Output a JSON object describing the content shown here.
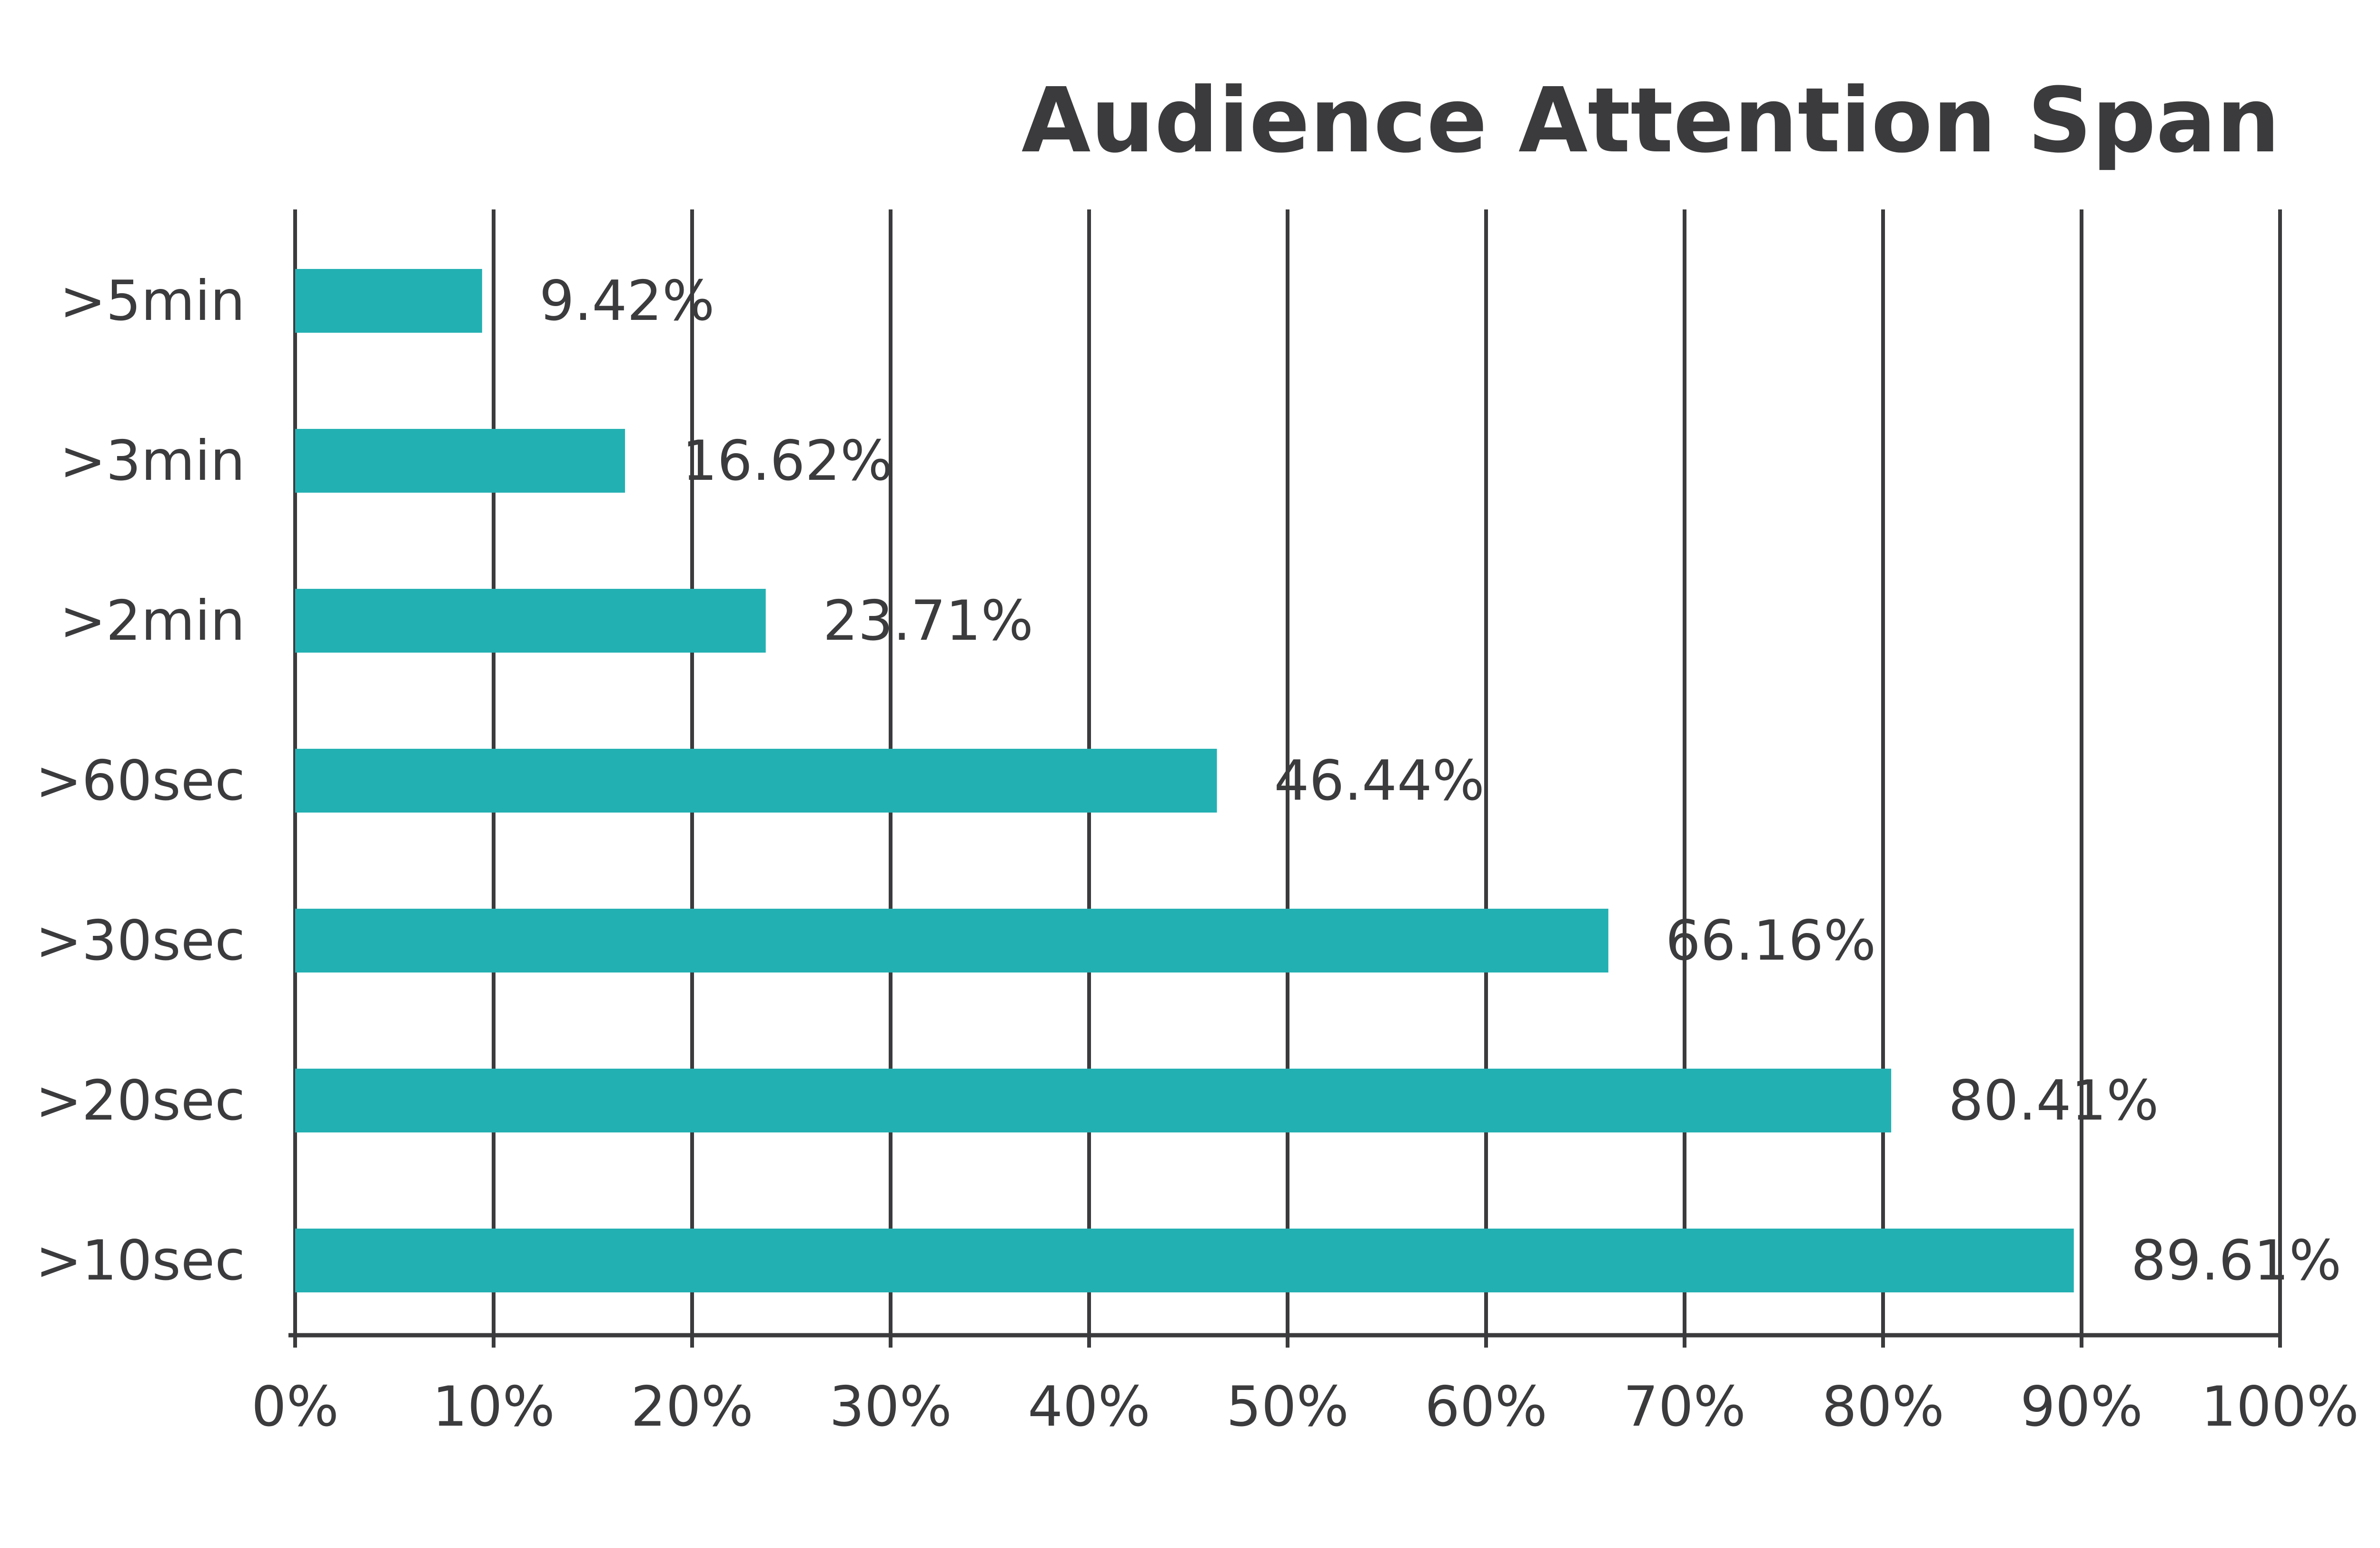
{
  "chart_data": {
    "type": "bar",
    "orientation": "horizontal",
    "title": "Audience Attention Span",
    "xlabel": "",
    "ylabel": "",
    "categories": [
      ">5min",
      ">3min",
      ">2min",
      ">60sec",
      ">30sec",
      ">20sec",
      ">10sec"
    ],
    "values": [
      9.42,
      16.62,
      23.71,
      46.44,
      66.16,
      80.41,
      89.61
    ],
    "value_labels": [
      "9.42%",
      "16.62%",
      "23.71%",
      "46.44%",
      "66.16%",
      "80.41%",
      "89.61%"
    ],
    "xlim": [
      0,
      100
    ],
    "x_ticks": [
      0,
      10,
      20,
      30,
      40,
      50,
      60,
      70,
      80,
      90,
      100
    ],
    "x_tick_labels": [
      "0%",
      "10%",
      "20%",
      "30%",
      "40%",
      "50%",
      "60%",
      "70%",
      "80%",
      "90%",
      "100%"
    ],
    "grid": true,
    "legend": "none",
    "colors": {
      "bar": "#23b0b2",
      "text": "#3b3b3d",
      "grid": "#3b3b3d",
      "background": "#ffffff"
    }
  }
}
